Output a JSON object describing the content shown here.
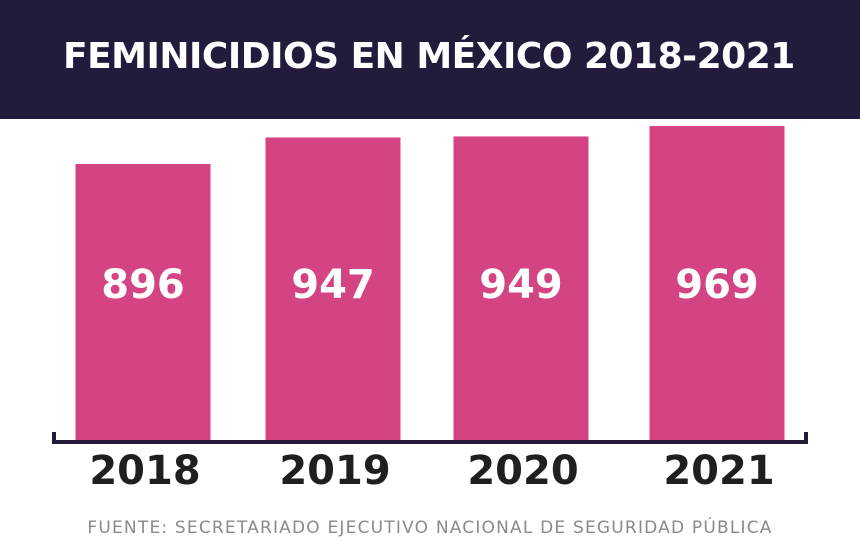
{
  "colors": {
    "header_bg": "#241a3c",
    "bar": "#d44483",
    "bar_label": "#ffffff",
    "axis": "#241a3c",
    "tick_label": "#1f1f1f",
    "source": "#8a8a8a"
  },
  "chart_data": {
    "type": "bar",
    "title": "FEMINICIDIOS EN MÉXICO 2018-2021",
    "categories": [
      "2018",
      "2019",
      "2020",
      "2021"
    ],
    "values": [
      896,
      947,
      949,
      969
    ],
    "value_labels": [
      "896",
      "947",
      "949",
      "969"
    ],
    "xlabel": "",
    "ylabel": "",
    "grid": false,
    "legend": "none"
  },
  "source_note": "FUENTE: SECRETARIADO EJECUTIVO NACIONAL DE SEGURIDAD PÚBLICA"
}
